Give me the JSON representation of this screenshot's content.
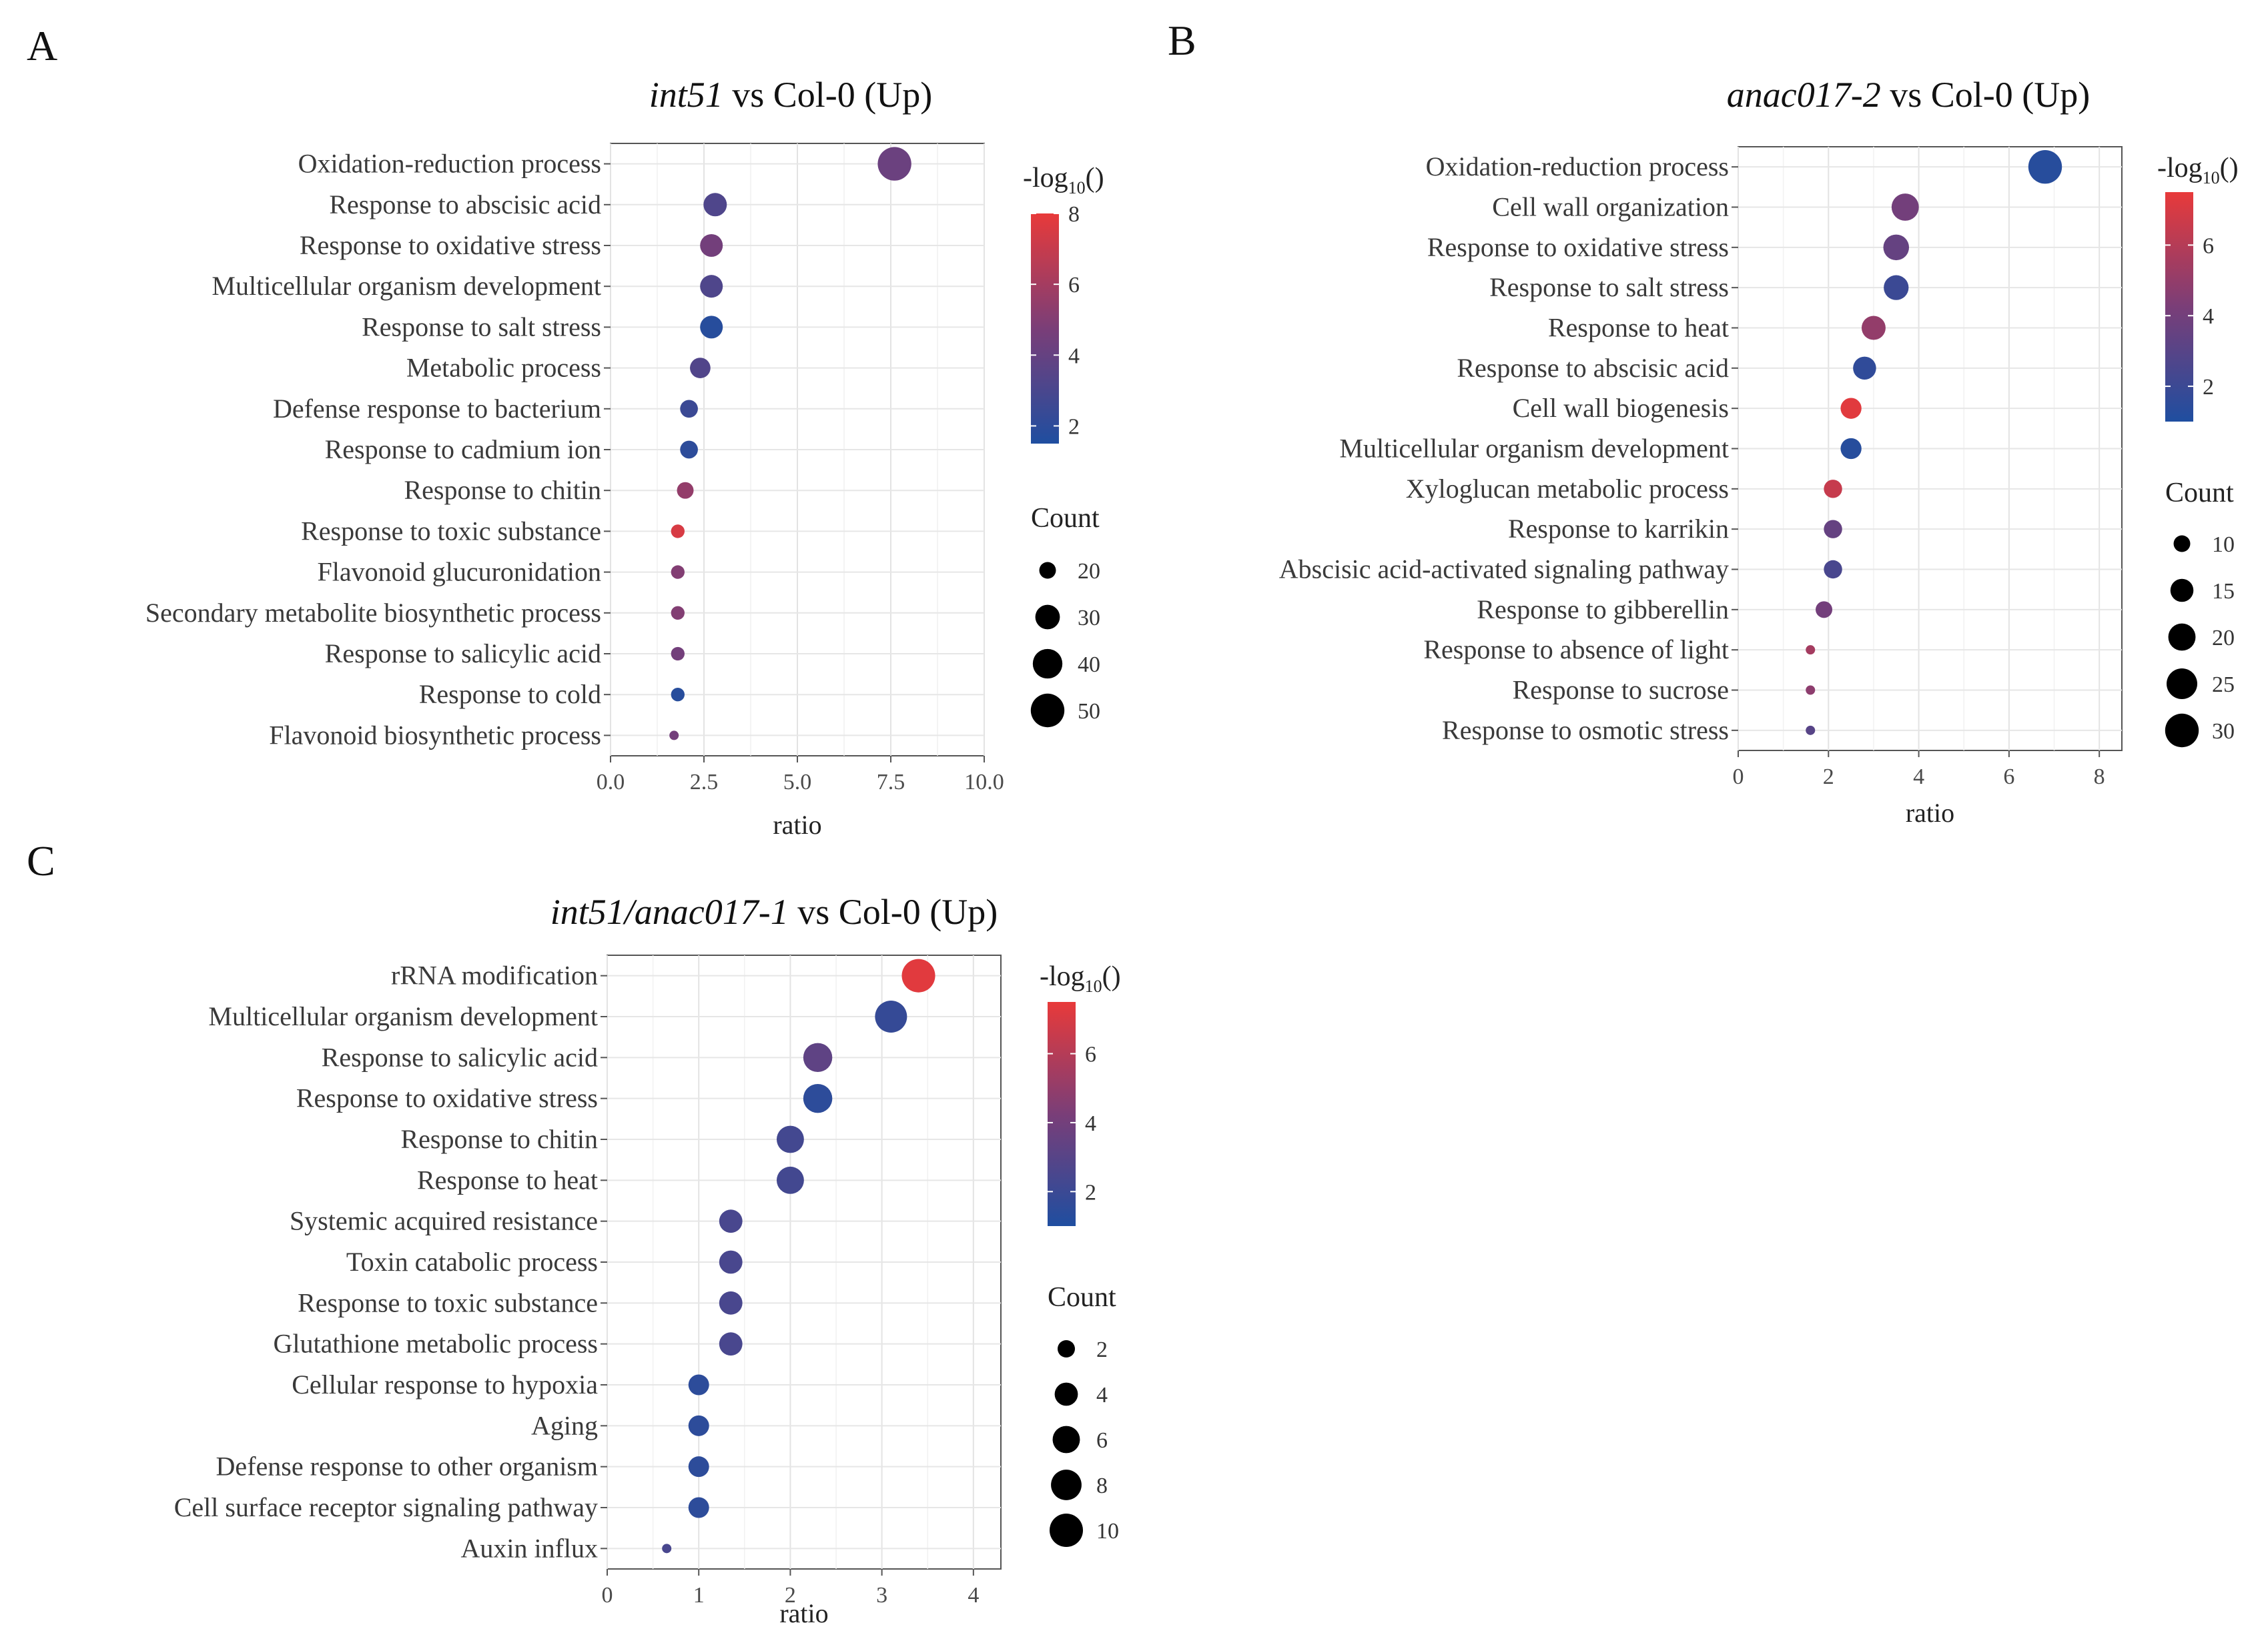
{
  "chart_data": [
    {
      "type": "scatter",
      "panel": "A",
      "title_italic": "int51",
      "title_rest": " vs Col-0 (Up)",
      "xlabel": "ratio",
      "xlim": [
        0,
        10
      ],
      "xticks": [
        "0.0",
        "2.5",
        "5.0",
        "7.5",
        "10.0"
      ],
      "xtick_values": [
        0,
        2.5,
        5,
        7.5,
        10
      ],
      "color_title": "-log",
      "color_sub": "10",
      "color_suffix": "()",
      "color_range": [
        1.5,
        8
      ],
      "color_ticks": [
        "2",
        "4",
        "6",
        "8"
      ],
      "color_tick_values": [
        2,
        4,
        6,
        8
      ],
      "size_title": "Count",
      "size_range": [
        17,
        53
      ],
      "size_ticks": [
        "20",
        "30",
        "40",
        "50"
      ],
      "size_tick_values": [
        20,
        30,
        40,
        50
      ],
      "categories": [
        "Oxidation-reduction process",
        "Response to abscisic acid",
        "Response to oxidative stress",
        "Multicellular organism development",
        "Response to salt stress",
        "Metabolic process",
        "Defense response to bacterium",
        "Response to cadmium ion",
        "Response to chitin",
        "Response to toxic substance",
        "Flavonoid glucuronidation",
        "Secondary metabolite biosynthetic process",
        "Response to salicylic acid",
        "Response to cold",
        "Flavonoid biosynthetic process"
      ],
      "ratio": [
        7.6,
        2.8,
        2.7,
        2.7,
        2.7,
        2.4,
        2.1,
        2.1,
        2.0,
        1.8,
        1.8,
        1.8,
        1.8,
        1.8,
        1.7
      ],
      "neglog10": [
        4.2,
        3.2,
        4.5,
        3.2,
        1.8,
        3.3,
        2.5,
        2.0,
        5.5,
        7.5,
        5.0,
        5.0,
        4.5,
        1.8,
        4.5
      ],
      "count": [
        50,
        28,
        27,
        27,
        27,
        24,
        21,
        21,
        20,
        18,
        18,
        18,
        18,
        18,
        17
      ]
    },
    {
      "type": "scatter",
      "panel": "B",
      "title_italic": "anac017-2",
      "title_rest": " vs Col-0 (Up)",
      "xlabel": "ratio",
      "xlim": [
        0,
        8.5
      ],
      "xticks": [
        "0",
        "2",
        "4",
        "6",
        "8"
      ],
      "xtick_values": [
        0,
        2,
        4,
        6,
        8
      ],
      "color_title": "-log",
      "color_sub": "10",
      "color_suffix": "()",
      "color_range": [
        1,
        7.5
      ],
      "color_ticks": [
        "2",
        "4",
        "6"
      ],
      "color_tick_values": [
        2,
        4,
        6
      ],
      "size_title": "Count",
      "size_range": [
        8,
        32
      ],
      "size_ticks": [
        "10",
        "15",
        "20",
        "25",
        "30"
      ],
      "size_tick_values": [
        10,
        15,
        20,
        25,
        30
      ],
      "categories": [
        "Oxidation-reduction process",
        "Cell wall organization",
        "Response to oxidative stress",
        "Response to salt stress",
        "Response to heat",
        "Response to abscisic acid",
        "Cell wall biogenesis",
        "Multicellular organism development",
        "Xyloglucan metabolic process",
        "Response to karrikin",
        "Abscisic acid-activated signaling pathway",
        "Response to gibberellin",
        "Response to absence of light",
        "Response to sucrose",
        "Response to osmotic stress"
      ],
      "ratio": [
        6.8,
        3.7,
        3.5,
        3.5,
        3.0,
        2.8,
        2.5,
        2.5,
        2.1,
        2.1,
        2.1,
        1.9,
        1.6,
        1.6,
        1.6
      ],
      "neglog10": [
        1.3,
        4.0,
        3.5,
        2.0,
        5.0,
        1.6,
        7.3,
        1.3,
        6.5,
        3.5,
        2.5,
        4.0,
        5.5,
        4.8,
        3.0
      ],
      "count": [
        30,
        20,
        18,
        17,
        16,
        15,
        13,
        13,
        11,
        11,
        11,
        10,
        8,
        8,
        8
      ]
    },
    {
      "type": "scatter",
      "panel": "C",
      "title_italic": "int51/anac017-1",
      "title_rest": " vs Col-0 (Up)",
      "xlabel": "ratio",
      "xlim": [
        0,
        4.3
      ],
      "xticks": [
        "0",
        "1",
        "2",
        "3",
        "4"
      ],
      "xtick_values": [
        0,
        1,
        2,
        3,
        4
      ],
      "color_title": "-log",
      "color_sub": "10",
      "color_suffix": "()",
      "color_range": [
        1,
        7.5
      ],
      "color_ticks": [
        "2",
        "4",
        "6"
      ],
      "color_tick_values": [
        2,
        4,
        6
      ],
      "size_title": "Count",
      "size_range": [
        1,
        11
      ],
      "size_ticks": [
        "2",
        "4",
        "6",
        "8",
        "10"
      ],
      "size_tick_values": [
        2,
        4,
        6,
        8,
        10
      ],
      "categories": [
        "rRNA modification",
        "Multicellular organism development",
        "Response to salicylic acid",
        "Response to oxidative stress",
        "Response to chitin",
        "Response to heat",
        "Systemic acquired resistance",
        "Toxin catabolic process",
        "Response to toxic substance",
        "Glutathione metabolic process",
        "Cellular response to hypoxia",
        "Aging",
        "Defense response to other organism",
        "Cell surface receptor signaling pathway",
        "Auxin influx"
      ],
      "ratio": [
        3.4,
        3.1,
        2.3,
        2.3,
        2.0,
        2.0,
        1.35,
        1.35,
        1.35,
        1.35,
        1.0,
        1.0,
        1.0,
        1.0,
        0.65
      ],
      "neglog10": [
        7.3,
        1.8,
        3.3,
        1.5,
        2.3,
        2.3,
        2.5,
        2.5,
        2.5,
        2.5,
        1.5,
        1.5,
        1.5,
        1.5,
        2.5
      ],
      "count": [
        10,
        9,
        7,
        7,
        6,
        6,
        4,
        4,
        4,
        4,
        3,
        3,
        3,
        3,
        1
      ]
    }
  ]
}
